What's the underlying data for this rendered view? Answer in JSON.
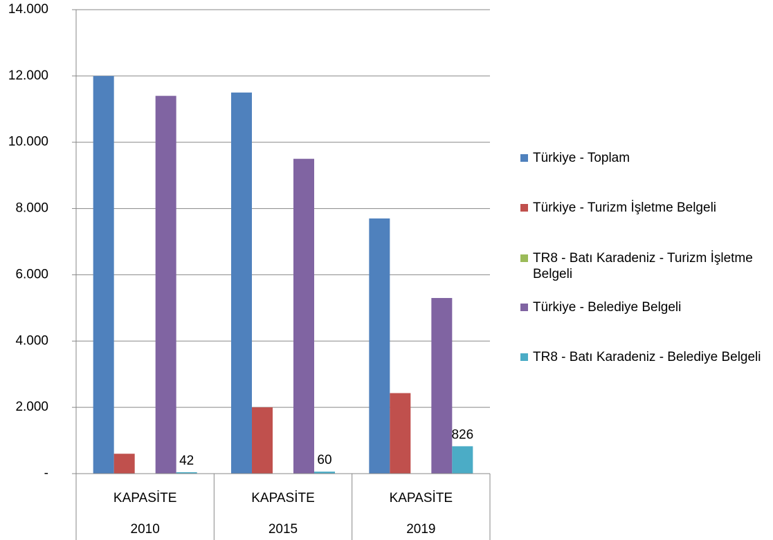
{
  "chart_data": {
    "type": "bar",
    "categories": [
      "2010",
      "2015",
      "2019"
    ],
    "category_groups": [
      "KAPASİTE",
      "KAPASİTE",
      "KAPASİTE"
    ],
    "series": [
      {
        "name": "Türkiye - Toplam",
        "color": "#4f81bd",
        "values": [
          12000,
          11500,
          7700
        ]
      },
      {
        "name": "Türkiye - Turizm İşletme Belgeli",
        "color": "#c0504d",
        "values": [
          600,
          2000,
          2430
        ]
      },
      {
        "name": "TR8 - Batı Karadeniz - Turizm İşletme Belgeli",
        "color": "#9bbb59",
        "values": [
          0,
          0,
          0
        ]
      },
      {
        "name": "Türkiye - Belediye Belgeli",
        "color": "#8064a2",
        "values": [
          11400,
          9500,
          5300
        ]
      },
      {
        "name": "TR8 - Batı Karadeniz - Belediye Belgeli",
        "color": "#4bacc6",
        "values": [
          42,
          60,
          826
        ],
        "show_labels": true
      }
    ],
    "ylim": [
      0,
      14000
    ],
    "yticks": [
      {
        "value": 0,
        "label": "-"
      },
      {
        "value": 2000,
        "label": "2.000"
      },
      {
        "value": 4000,
        "label": "4.000"
      },
      {
        "value": 6000,
        "label": "6.000"
      },
      {
        "value": 8000,
        "label": "8.000"
      },
      {
        "value": 10000,
        "label": "10.000"
      },
      {
        "value": 12000,
        "label": "12.000"
      },
      {
        "value": 14000,
        "label": "14.000"
      }
    ],
    "grid": true,
    "legend": "right"
  }
}
